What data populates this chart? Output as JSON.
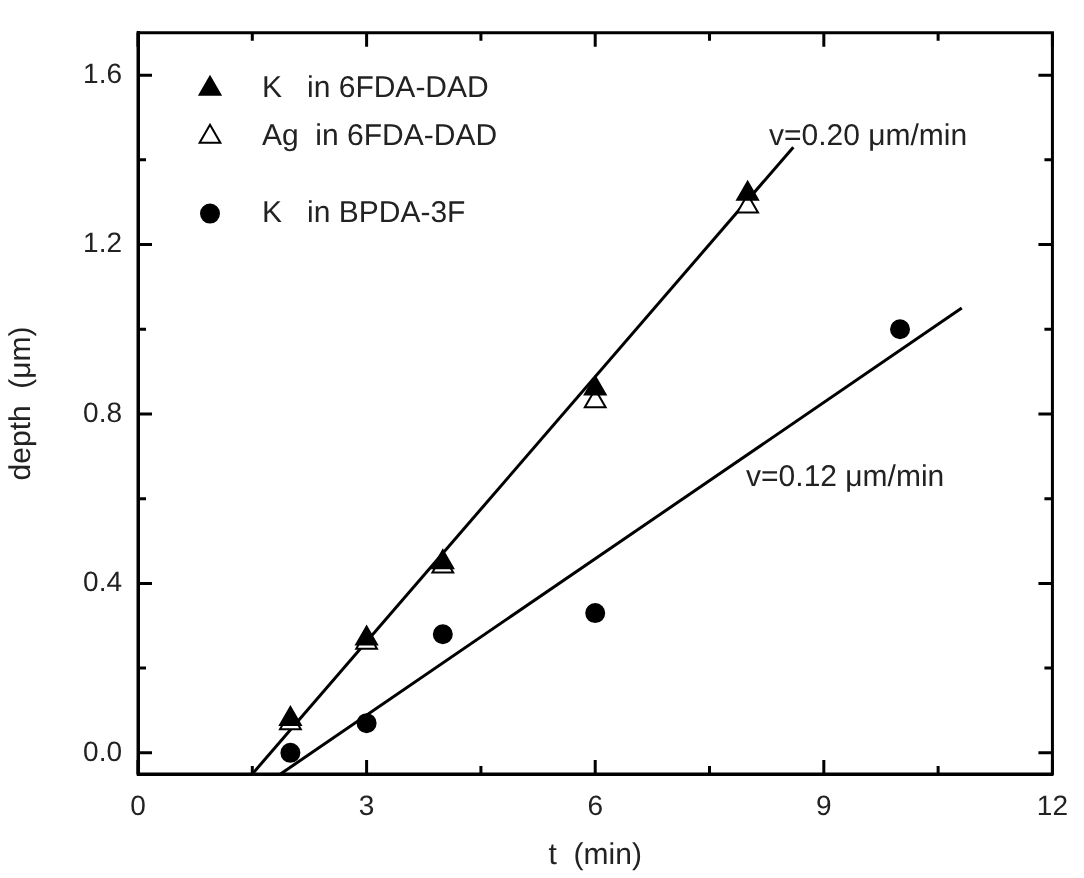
{
  "chart_data": {
    "type": "scatter",
    "xlabel": "t  (min)",
    "ylabel": "depth  (μm)",
    "xlim": [
      0,
      12
    ],
    "ylim": [
      -0.05,
      1.7
    ],
    "xticks": [
      0,
      {
        "value": 1.5,
        "label": null
      },
      3,
      {
        "value": 4.5,
        "label": null
      },
      6,
      {
        "value": 7.5,
        "label": null
      },
      9,
      {
        "value": 10.5,
        "label": null
      },
      12
    ],
    "yticks": [
      "0.0",
      {
        "value": 0.2,
        "label": null
      },
      {
        "value": 0.4,
        "label": "0.4"
      },
      {
        "value": 0.6,
        "label": null
      },
      {
        "value": 0.8,
        "label": "0.8"
      },
      {
        "value": 1.0,
        "label": null
      },
      {
        "value": 1.2,
        "label": "1.2"
      },
      {
        "value": 1.4,
        "label": null
      },
      {
        "value": 1.6,
        "label": "1.6"
      }
    ],
    "grid": false,
    "legend": "top left",
    "series": [
      {
        "name": "K   in 6FDA-DAD",
        "color": "#000000",
        "marker": "triangle",
        "x": [
          2,
          3,
          4,
          6,
          8
        ],
        "values": [
          0.08,
          0.27,
          0.45,
          0.86,
          1.32
        ]
      },
      {
        "name": "Ag  in 6FDA-DAD",
        "color": "#ffffff",
        "marker": "triangle",
        "x": [
          2,
          3,
          4,
          6,
          8
        ],
        "values": [
          0.07,
          0.26,
          0.44,
          0.83,
          1.29
        ]
      },
      {
        "name": "K   in BPDA-3F",
        "color": "#000000",
        "marker": "circle",
        "x": [
          2,
          3,
          4,
          6,
          10
        ],
        "values": [
          0.0,
          0.07,
          0.28,
          0.33,
          1.0
        ]
      },
      {
        "type": "line",
        "color": "#000000",
        "marker": "none",
        "x": [
          1.5,
          8.6
        ],
        "values": [
          -0.05,
          1.43
        ]
      },
      {
        "type": "line",
        "color": "#000000",
        "marker": "none",
        "x": [
          1.87,
          10.81
        ],
        "values": [
          -0.05,
          1.05
        ]
      }
    ],
    "annotations": [
      "v=0.20 μm/min",
      "v=0.12 μm/min"
    ]
  }
}
